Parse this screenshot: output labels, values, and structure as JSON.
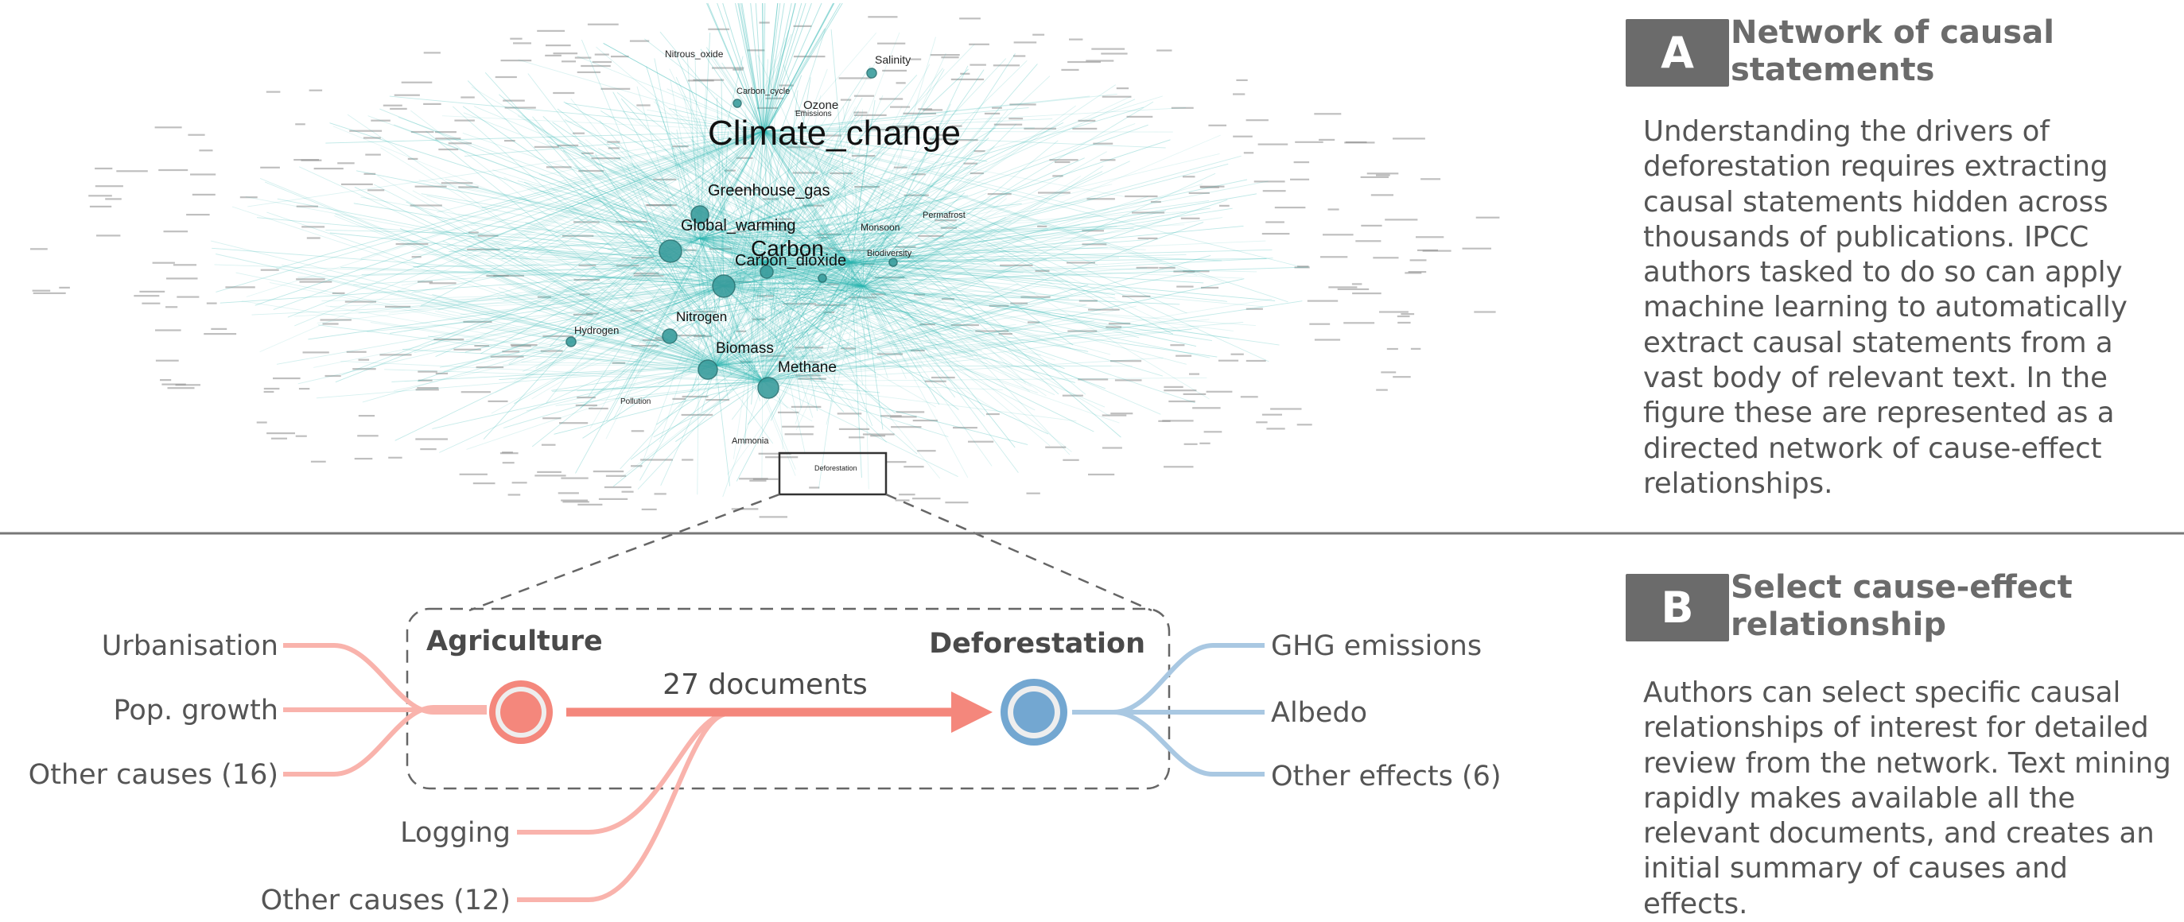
{
  "network": {
    "central_node": "Climate_change",
    "labeled_nodes": [
      "Greenhouse_gas",
      "Global_warming",
      "Carbon",
      "Carbon_dioxide",
      "Nitrogen",
      "Biomass",
      "Methane",
      "Hydrogen",
      "Ozone",
      "Salinity",
      "Nitrous_oxide",
      "Deforestation",
      "Carbon_cycle",
      "Monsoon",
      "Biodiversity",
      "Permafrost",
      "Ammonia",
      "Emissions",
      "Pollution"
    ]
  },
  "relationship": {
    "cause": "Agriculture",
    "effect": "Deforestation",
    "documents_label": "27 documents",
    "upstream_causes": [
      "Urbanisation",
      "Pop. growth",
      "Other causes (16)"
    ],
    "downstream_effects": [
      "GHG emissions",
      "Albedo",
      "Other effects (6)"
    ],
    "other_causes_of_effect": [
      "Logging",
      "Other causes (12)"
    ]
  },
  "panel_a": {
    "badge": "A",
    "title": "Network of causal statements",
    "body": "Understanding the drivers of deforestation requires extracting causal statements hidden across thousands of publications. IPCC authors tasked to do so can apply machine learning to automatically extract causal statements from a vast body of relevant text. In the figure these are represented as a directed network of cause-effect relationships."
  },
  "panel_b": {
    "badge": "B",
    "title": "Select cause-effect relationship",
    "body": "Authors can select specific causal relationships of interest for detailed review from the network. Text mining rapidly makes available all the relevant documents, and creates an initial summary of causes and effects."
  },
  "colors": {
    "network_edge": "#2bb5b0",
    "network_node": "#3a9d9d",
    "cause": "#f4877c",
    "cause_light": "#f9b3ac",
    "effect": "#73a7d1",
    "effect_light": "#a9c8e2",
    "panel_gray": "#6b6b6b",
    "divider": "#777777"
  }
}
